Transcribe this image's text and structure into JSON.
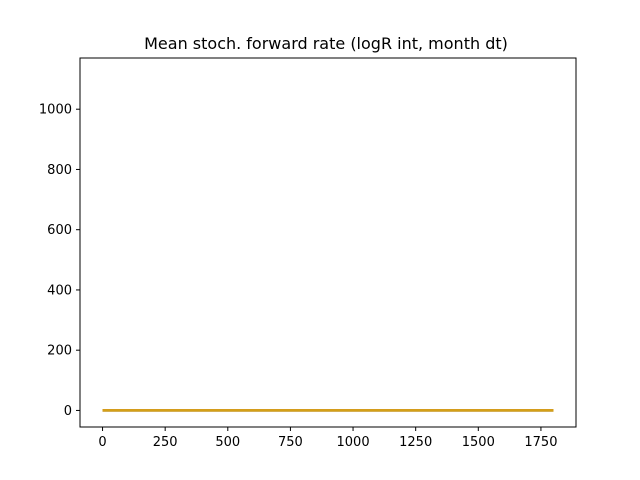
{
  "chart_data": {
    "type": "line",
    "title": "Mean stoch. forward rate (logR int, month dt)",
    "xlabel": "",
    "ylabel": "",
    "xlim": [
      -90,
      1890
    ],
    "ylim": [
      -55,
      1170
    ],
    "x_ticks": [
      0,
      250,
      500,
      750,
      1000,
      1250,
      1500,
      1750
    ],
    "x_tick_labels": [
      "0",
      "250",
      "500",
      "750",
      "1000",
      "1250",
      "1500",
      "1750"
    ],
    "y_ticks": [
      0,
      200,
      400,
      600,
      800,
      1000
    ],
    "y_tick_labels": [
      "0",
      "200",
      "400",
      "600",
      "800",
      "1000"
    ],
    "grid": false,
    "series": [
      {
        "color": "#1f77b4",
        "x": [
          0,
          1800
        ],
        "y": [
          0,
          0
        ]
      },
      {
        "color": "#ff7f0e",
        "x": [
          0,
          1800
        ],
        "y": [
          0,
          0
        ]
      },
      {
        "color": "#d4a017",
        "x": [
          0,
          1800
        ],
        "y": [
          0,
          0
        ]
      }
    ]
  }
}
